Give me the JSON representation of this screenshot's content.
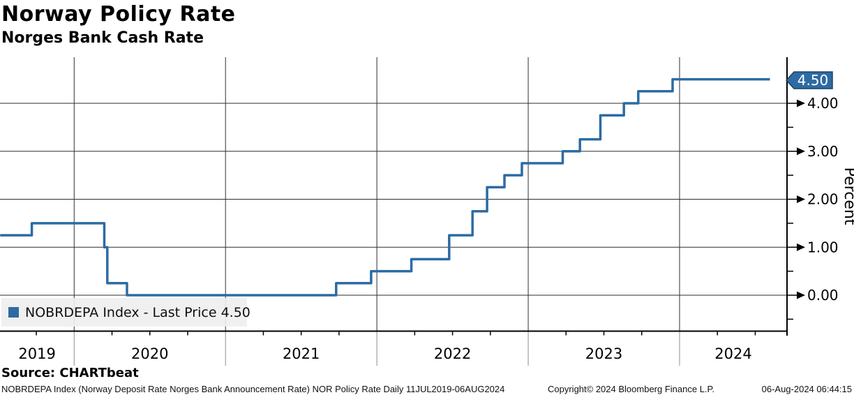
{
  "header": {
    "title": "Norway Policy Rate",
    "subtitle": "Norges Bank Cash Rate"
  },
  "legend": {
    "marker_color": "#2d6ba4",
    "label": "NOBRDEPA Index - Last Price 4.50"
  },
  "last_price_tag": {
    "value": "4.50",
    "bg": "#2d6ba4",
    "border": "#1b4060",
    "text_color": "#ffffff"
  },
  "source": {
    "label": "Source: CHARTbeat"
  },
  "footer": {
    "description": "NOBRDEPA Index (Norway Deposit Rate Norges Bank Announcement Rate) NOR Policy Rate  Daily 11JUL2019-06AUG2024",
    "copyright": "Copyright© 2024 Bloomberg Finance L.P.",
    "datetime": "06-Aug-2024 06:44:15"
  },
  "chart_data": {
    "type": "line",
    "step_mode": "step-after",
    "title": "Norway Policy Rate",
    "subtitle": "Norges Bank Cash Rate",
    "ylabel": "Percent",
    "xlabel": "",
    "grid": true,
    "legend_position": "bottom-left",
    "x_range_years": [
      2019.51,
      2024.71
    ],
    "ylim": [
      -0.75,
      4.95
    ],
    "x_year_ticks": [
      2019,
      2020,
      2021,
      2022,
      2023,
      2024
    ],
    "x_minor_tick_interval_years": 0.25,
    "y_major_ticks": [
      {
        "value": 0,
        "label": "0.00"
      },
      {
        "value": 1,
        "label": "1.00"
      },
      {
        "value": 2,
        "label": "2.00"
      },
      {
        "value": 3,
        "label": "3.00"
      },
      {
        "value": 4,
        "label": "4.00"
      }
    ],
    "y_minor_ticks": [
      -0.5,
      0.5,
      1.5,
      2.5,
      3.5,
      4.5
    ],
    "series": [
      {
        "name": "NOBRDEPA Index",
        "color": "#2d6ba4",
        "last_price": 4.5,
        "steps": [
          [
            2019.511,
            1.25
          ],
          [
            2019.72,
            1.5
          ],
          [
            2020.199,
            1.0
          ],
          [
            2020.219,
            0.25
          ],
          [
            2020.349,
            0.0
          ],
          [
            2021.731,
            0.25
          ],
          [
            2021.962,
            0.5
          ],
          [
            2022.228,
            0.75
          ],
          [
            2022.478,
            1.25
          ],
          [
            2022.632,
            1.75
          ],
          [
            2022.728,
            2.25
          ],
          [
            2022.843,
            2.5
          ],
          [
            2022.958,
            2.75
          ],
          [
            2023.228,
            3.0
          ],
          [
            2023.342,
            3.25
          ],
          [
            2023.477,
            3.75
          ],
          [
            2023.632,
            4.0
          ],
          [
            2023.727,
            4.25
          ],
          [
            2023.954,
            4.5
          ],
          [
            2024.597,
            4.5
          ]
        ]
      }
    ]
  }
}
